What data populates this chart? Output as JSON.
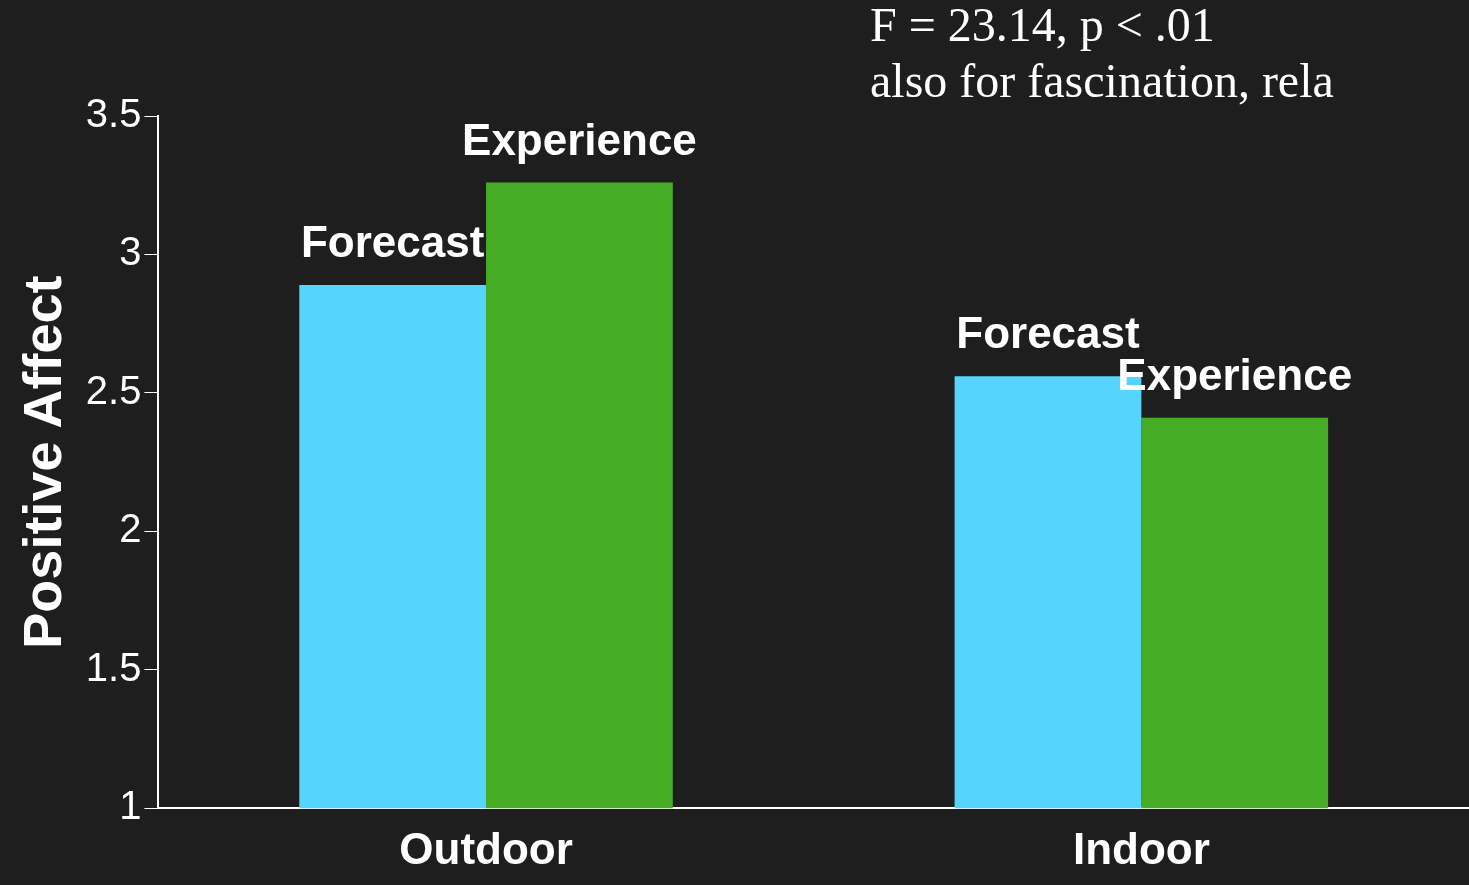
{
  "chart_data": {
    "type": "bar",
    "ylabel": "Positive Affect",
    "categories": [
      "Outdoor",
      "Indoor"
    ],
    "series": [
      {
        "name": "Forecast",
        "color": "#55d4fe",
        "values": [
          2.89,
          2.56
        ]
      },
      {
        "name": "Experience",
        "color": "#46ac25",
        "values": [
          3.26,
          2.41
        ]
      }
    ],
    "ylim": [
      1,
      3.5
    ],
    "yticks": [
      1,
      1.5,
      2,
      2.5,
      3,
      3.5
    ],
    "grid": false,
    "legend": false,
    "annotations": [
      "F = 23.14, p < .01",
      "also for fascination, rela"
    ]
  }
}
